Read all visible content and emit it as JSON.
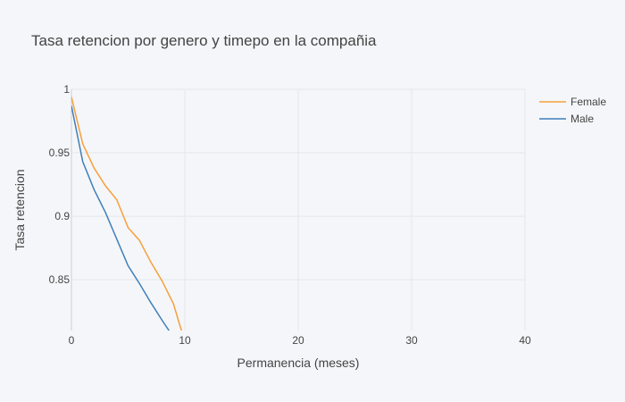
{
  "chart_data": {
    "type": "line",
    "title": "Tasa retencion por genero y timepo en la compañia",
    "xlabel": "Permanencia (meses)",
    "ylabel": "Tasa retencion",
    "xlim": [
      0,
      40
    ],
    "ylim": [
      0.81,
      1.0
    ],
    "x_ticks": [
      "0",
      "10",
      "20",
      "30",
      "40"
    ],
    "y_ticks": [
      "1",
      "0.95",
      "0.9",
      "0.85"
    ],
    "grid": true,
    "legend_position": "top-right",
    "series": [
      {
        "name": "Female",
        "color": "#f6a03c",
        "x": [
          0,
          1,
          2,
          3,
          4,
          5,
          6,
          7,
          8,
          9,
          9.7
        ],
        "y": [
          0.994,
          0.957,
          0.938,
          0.924,
          0.913,
          0.891,
          0.881,
          0.864,
          0.849,
          0.831,
          0.81
        ]
      },
      {
        "name": "Male",
        "color": "#3f7fba",
        "x": [
          0,
          1,
          2,
          3,
          4,
          5,
          6,
          7,
          8,
          8.9
        ],
        "y": [
          0.987,
          0.943,
          0.921,
          0.903,
          0.882,
          0.861,
          0.847,
          0.832,
          0.818,
          0.806
        ]
      }
    ]
  }
}
